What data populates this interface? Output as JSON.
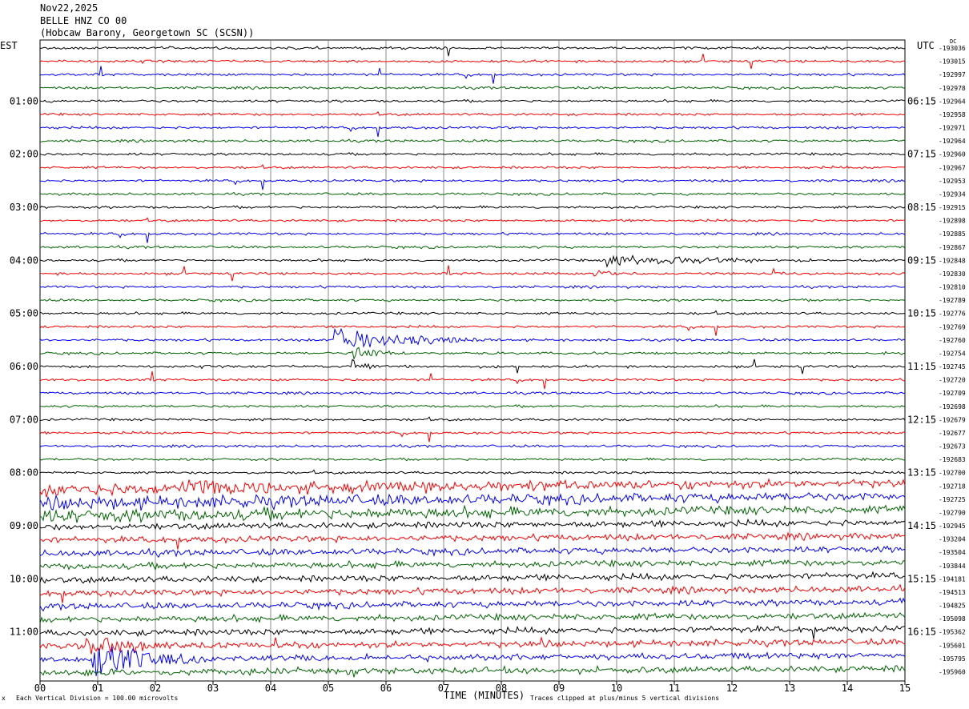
{
  "header": {
    "date": "Nov22,2025",
    "station": "BELLE HNZ CO 00",
    "location": "(Hobcaw Barony, Georgetown SC (SCSN))"
  },
  "chart_data": {
    "type": "line",
    "title": "BELLE HNZ CO 00",
    "left_timezone": "EST",
    "right_timezone": "UTC",
    "right_corner_label": "DC",
    "xlabel": "TIME (MINUTES)",
    "x_ticks": [
      "00",
      "01",
      "02",
      "03",
      "04",
      "05",
      "06",
      "07",
      "08",
      "09",
      "10",
      "11",
      "12",
      "13",
      "14",
      "15"
    ],
    "xlim": [
      0,
      15
    ],
    "left_hour_labels": [
      {
        "row": 4,
        "label": "01:00"
      },
      {
        "row": 8,
        "label": "02:00"
      },
      {
        "row": 12,
        "label": "03:00"
      },
      {
        "row": 16,
        "label": "04:00"
      },
      {
        "row": 20,
        "label": "05:00"
      },
      {
        "row": 24,
        "label": "06:00"
      },
      {
        "row": 28,
        "label": "07:00"
      },
      {
        "row": 32,
        "label": "08:00"
      },
      {
        "row": 36,
        "label": "09:00"
      },
      {
        "row": 40,
        "label": "10:00"
      },
      {
        "row": 44,
        "label": "11:00"
      }
    ],
    "right_hour_labels": [
      {
        "row": 4,
        "label": "06:15"
      },
      {
        "row": 8,
        "label": "07:15"
      },
      {
        "row": 12,
        "label": "08:15"
      },
      {
        "row": 16,
        "label": "09:15"
      },
      {
        "row": 20,
        "label": "10:15"
      },
      {
        "row": 24,
        "label": "11:15"
      },
      {
        "row": 28,
        "label": "12:15"
      },
      {
        "row": 32,
        "label": "13:15"
      },
      {
        "row": 36,
        "label": "14:15"
      },
      {
        "row": 40,
        "label": "15:15"
      },
      {
        "row": 44,
        "label": "16:15"
      }
    ],
    "trace_dc_offsets": [
      "-193036",
      "-193015",
      "-192997",
      "-192978",
      "-192964",
      "-192958",
      "-192971",
      "-192964",
      "-192960",
      "-192967",
      "-192953",
      "-192934",
      "-192915",
      "-192898",
      "-192885",
      "-192867",
      "-192848",
      "-192830",
      "-192810",
      "-192789",
      "-192776",
      "-192769",
      "-192760",
      "-192754",
      "-192745",
      "-192720",
      "-192709",
      "-192698",
      "-192679",
      "-192677",
      "-192673",
      "-192683",
      "-192700",
      "-192718",
      "-192725",
      "-192790",
      "-192945",
      "-193204",
      "-193504",
      "-193844",
      "-194181",
      "-194513",
      "-194825",
      "-195098",
      "-195362",
      "-195601",
      "-195795",
      "-195960"
    ],
    "trace_colors": [
      "#000000",
      "#ff0000",
      "#0000ff",
      "#006400"
    ],
    "grid": "vertical lines every minute"
  },
  "footer": {
    "scale_note": "Each Vertical Division = 100.00 microvolts",
    "clip_note": "Traces clipped at plus/minus 5 vertical divisions",
    "corner_mark": "x"
  }
}
